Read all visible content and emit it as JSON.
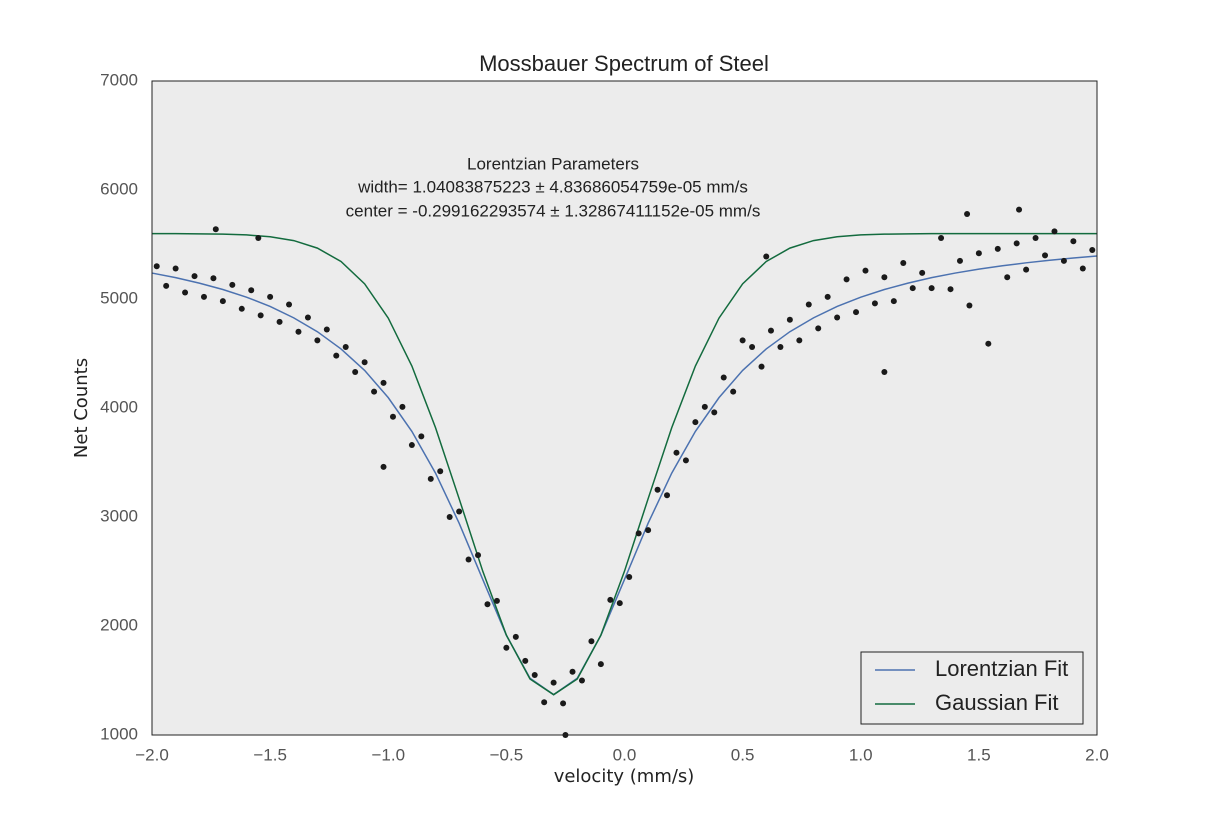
{
  "chart_data": {
    "type": "scatter",
    "title": "Mossbauer Spectrum of Steel",
    "xlabel": "velocity (mm/s)",
    "ylabel": "Net Counts",
    "annotation": [
      "Lorentzian Parameters",
      "width= 1.04083875223 ± 4.83686054759e-05 mm/s",
      "center = -0.299162293574 ± 1.32867411152e-05 mm/s"
    ],
    "xlim": [
      -2,
      2
    ],
    "ylim": [
      1000,
      7000
    ],
    "xticks": [
      {
        "value": -2,
        "label": "−2.0"
      },
      {
        "value": -1.5,
        "label": "−1.5"
      },
      {
        "value": -1,
        "label": "−1.0"
      },
      {
        "value": -0.5,
        "label": "−0.5"
      },
      {
        "value": 0,
        "label": "0.0"
      },
      0.5,
      {
        "value": 1,
        "label": "1.0"
      },
      1.5,
      {
        "value": 2,
        "label": "2.0"
      }
    ],
    "yticks": [
      1000,
      2000,
      3000,
      4000,
      5000,
      6000,
      7000
    ],
    "grid": false,
    "legend": "lower right",
    "background": "#ececec",
    "scatter": {
      "color": "#1a1a1a",
      "x": [
        -1.98,
        -1.94,
        -1.9,
        -1.86,
        -1.82,
        -1.78,
        -1.74,
        -1.7,
        -1.66,
        -1.62,
        -1.58,
        -1.54,
        -1.5,
        -1.46,
        -1.42,
        -1.38,
        -1.34,
        -1.3,
        -1.26,
        -1.22,
        -1.18,
        -1.14,
        -1.1,
        -1.06,
        -1.02,
        -0.98,
        -0.94,
        -0.9,
        -0.86,
        -0.82,
        -0.78,
        -0.74,
        -0.7,
        -0.66,
        -0.62,
        -0.58,
        -0.54,
        -0.5,
        -0.46,
        -0.42,
        -0.38,
        -0.34,
        -0.3,
        -0.26,
        -0.22,
        -0.18,
        -0.14,
        -0.1,
        -0.06,
        -0.02,
        0.02,
        0.06,
        0.1,
        0.14,
        0.18,
        0.22,
        0.26,
        0.3,
        0.34,
        0.38,
        0.42,
        0.46,
        0.5,
        0.54,
        0.58,
        0.62,
        0.66,
        0.7,
        0.74,
        0.78,
        0.82,
        0.86,
        0.9,
        0.94,
        0.98,
        1.02,
        1.06,
        1.1,
        1.14,
        1.18,
        1.22,
        1.26,
        1.3,
        1.34,
        1.38,
        1.42,
        1.46,
        1.5,
        1.54,
        1.58,
        1.62,
        1.66,
        1.7,
        1.74,
        1.78,
        1.82,
        1.86,
        1.9,
        1.94,
        1.98,
        -1.73,
        -1.55,
        0.6,
        1.67,
        -0.25,
        1.1,
        1.45,
        -1.02
      ],
      "values": [
        5300,
        5120,
        5280,
        5060,
        5210,
        5020,
        5190,
        4980,
        5130,
        4910,
        5080,
        4850,
        5020,
        4790,
        4950,
        4700,
        4830,
        4620,
        4720,
        4480,
        4560,
        4330,
        4420,
        4150,
        4230,
        3920,
        4010,
        3660,
        3740,
        3350,
        3420,
        3000,
        3050,
        2610,
        2650,
        2200,
        2230,
        1800,
        1900,
        1680,
        1550,
        1300,
        1480,
        1290,
        1580,
        1500,
        1860,
        1650,
        2240,
        2210,
        2450,
        2850,
        2880,
        3250,
        3200,
        3590,
        3520,
        3870,
        4010,
        3960,
        4280,
        4150,
        4620,
        4560,
        4380,
        4710,
        4560,
        4810,
        4620,
        4950,
        4730,
        5020,
        4830,
        5180,
        4880,
        5260,
        4960,
        5200,
        4980,
        5330,
        5100,
        5240,
        5100,
        5560,
        5090,
        5350,
        4940,
        5420,
        4590,
        5460,
        5200,
        5510,
        5270,
        5560,
        5400,
        5620,
        5350,
        5530,
        5280,
        5450,
        5640,
        5560,
        5390,
        5820,
        1000,
        4330,
        5780,
        3460
      ]
    },
    "series": [
      {
        "name": "Lorentzian Fit",
        "color": "#4c72b0",
        "x": [
          -2,
          -1.9,
          -1.8,
          -1.7,
          -1.6,
          -1.5,
          -1.4,
          -1.3,
          -1.2,
          -1.1,
          -1,
          -0.9,
          -0.8,
          -0.7,
          -0.6,
          -0.5,
          -0.4,
          -0.3,
          -0.2,
          -0.1,
          0,
          0.1,
          0.2,
          0.3,
          0.4,
          0.5,
          0.6,
          0.7,
          0.8,
          0.9,
          1,
          1.1,
          1.2,
          1.3,
          1.4,
          1.5,
          1.6,
          1.7,
          1.8,
          1.9,
          2
        ],
        "values": [
          5238,
          5196,
          5146,
          5087,
          5017,
          4932,
          4827,
          4700,
          4542,
          4345,
          4095,
          3785,
          3403,
          2943,
          2427,
          1915,
          1521,
          1370,
          1521,
          1915,
          2427,
          2943,
          3403,
          3785,
          4095,
          4345,
          4542,
          4700,
          4827,
          4932,
          5017,
          5087,
          5146,
          5196,
          5238,
          5274,
          5305,
          5332,
          5356,
          5376,
          5394
        ]
      },
      {
        "name": "Gaussian Fit",
        "color": "#136b3e",
        "x": [
          -2,
          -1.9,
          -1.8,
          -1.7,
          -1.6,
          -1.5,
          -1.4,
          -1.3,
          -1.2,
          -1.1,
          -1,
          -0.9,
          -0.8,
          -0.7,
          -0.6,
          -0.5,
          -0.4,
          -0.3,
          -0.2,
          -0.1,
          0,
          0.1,
          0.2,
          0.3,
          0.4,
          0.5,
          0.6,
          0.7,
          0.8,
          0.9,
          1,
          1.1,
          1.2,
          1.3,
          1.4,
          1.5,
          1.6,
          1.7,
          1.8,
          1.9,
          2
        ],
        "values": [
          5600,
          5600,
          5598,
          5595,
          5588,
          5571,
          5536,
          5467,
          5344,
          5139,
          4825,
          4385,
          3820,
          3168,
          2503,
          1916,
          1514,
          1370,
          1514,
          1916,
          2503,
          3168,
          3820,
          4385,
          4825,
          5139,
          5344,
          5467,
          5536,
          5571,
          5588,
          5595,
          5598,
          5600,
          5600,
          5600,
          5600,
          5600,
          5600,
          5600,
          5600
        ]
      }
    ]
  }
}
